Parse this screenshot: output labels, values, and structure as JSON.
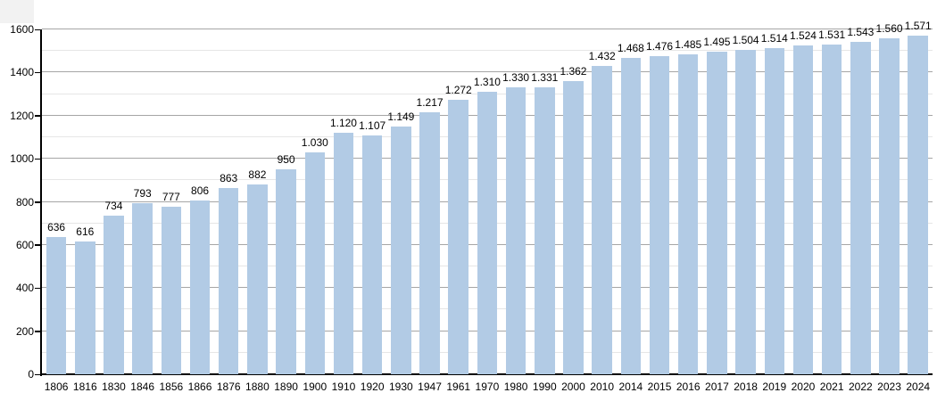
{
  "chart_data": {
    "type": "bar",
    "title": "",
    "xlabel": "",
    "ylabel": "",
    "categories": [
      "1806",
      "1816",
      "1830",
      "1846",
      "1856",
      "1866",
      "1876",
      "1880",
      "1890",
      "1900",
      "1910",
      "1920",
      "1930",
      "1947",
      "1961",
      "1970",
      "1980",
      "1990",
      "2000",
      "2010",
      "2014",
      "2015",
      "2016",
      "2017",
      "2018",
      "2019",
      "2020",
      "2021",
      "2022",
      "2023",
      "2024"
    ],
    "values": [
      636,
      616,
      734,
      793,
      777,
      806,
      863,
      882,
      950,
      1030,
      1120,
      1107,
      1149,
      1217,
      1272,
      1310,
      1330,
      1331,
      1362,
      1432,
      1468,
      1476,
      1485,
      1495,
      1504,
      1514,
      1524,
      1531,
      1543,
      1560,
      1571
    ],
    "value_labels": [
      "636",
      "616",
      "734",
      "793",
      "777",
      "806",
      "863",
      "882",
      "950",
      "1.030",
      "1.120",
      "1.107",
      "1.149",
      "1.217",
      "1.272",
      "1.310",
      "1.330",
      "1.331",
      "1.362",
      "1.432",
      "1.468",
      "1.476",
      "1.485",
      "1.495",
      "1.504",
      "1.514",
      "1.524",
      "1.531",
      "1.543",
      "1.560",
      "1.571"
    ],
    "ylim": [
      0,
      1600
    ],
    "ytick_labels": [
      "0",
      "200",
      "400",
      "600",
      "800",
      "1000",
      "1200",
      "1400",
      "1600"
    ],
    "ytick_values": [
      0,
      200,
      400,
      600,
      800,
      1000,
      1200,
      1400,
      1600
    ],
    "minor_grid_step": 100,
    "major_grid_step": 200,
    "grid": true,
    "legend": null,
    "colors": {
      "bar": "#b2cbe5",
      "major_gridline": "#a6a6a6",
      "minor_gridline": "#e6e6e6",
      "axis": "#000000",
      "text": "#000000",
      "background": "#ffffff",
      "corner_artifact": "#f2f2f2"
    }
  }
}
